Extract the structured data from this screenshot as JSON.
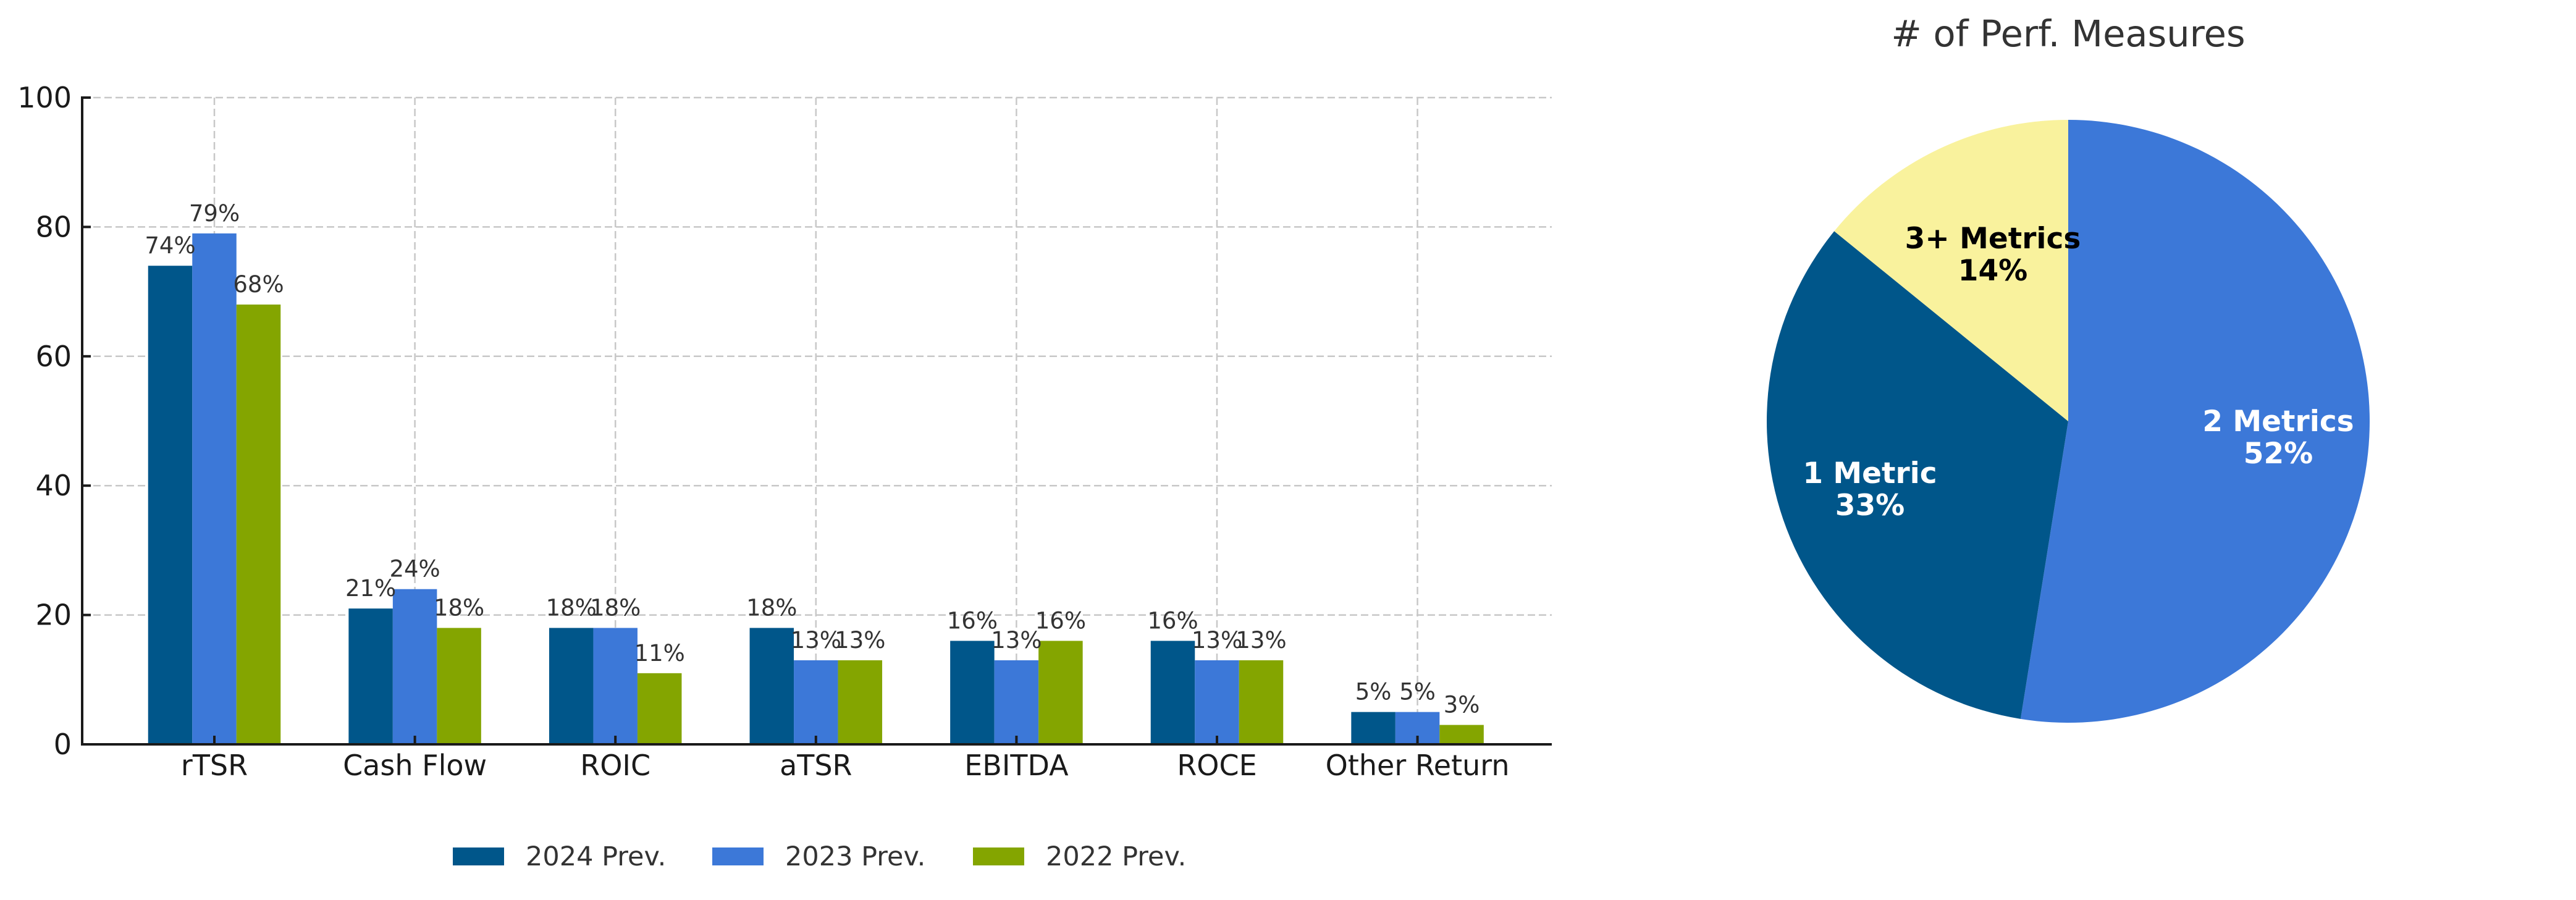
{
  "chart_data": [
    {
      "type": "bar",
      "title": "",
      "xlabel": "",
      "ylabel": "",
      "ylim": [
        0,
        100
      ],
      "yticks": [
        0,
        20,
        40,
        60,
        80,
        100
      ],
      "grid": true,
      "legend_position": "bottom-center",
      "categories": [
        "rTSR",
        "Cash Flow",
        "ROIC",
        "aTSR",
        "EBITDA",
        "ROCE",
        "Other Return"
      ],
      "series": [
        {
          "name": "2024 Prev.",
          "color": "#00568A",
          "values": [
            74,
            21,
            18,
            18,
            16,
            16,
            5
          ],
          "labels": [
            "74%",
            "21%",
            "18%",
            "18%",
            "16%",
            "16%",
            "5%"
          ]
        },
        {
          "name": "2023 Prev.",
          "color": "#3C78D8",
          "values": [
            79,
            24,
            18,
            13,
            13,
            13,
            5
          ],
          "labels": [
            "79%",
            "24%",
            "18%",
            "13%",
            "13%",
            "13%",
            "5%"
          ]
        },
        {
          "name": "2022 Prev.",
          "color": "#84A500",
          "values": [
            68,
            18,
            11,
            13,
            16,
            13,
            3
          ],
          "labels": [
            "68%",
            "18%",
            "11%",
            "13%",
            "16%",
            "13%",
            "3%"
          ]
        }
      ]
    },
    {
      "type": "pie",
      "title": "# of Perf. Measures",
      "slices": [
        {
          "label": "2 Metrics",
          "value": 52,
          "pct_label": "52%",
          "color": "#3C78D8",
          "text_color": "#ffffff"
        },
        {
          "label": "1 Metric",
          "value": 33,
          "pct_label": "33%",
          "color": "#00568A",
          "text_color": "#ffffff"
        },
        {
          "label": "3+ Metrics",
          "value": 14,
          "pct_label": "14%",
          "color": "#F9F29D",
          "text_color": "#000000"
        }
      ],
      "start_angle": 90,
      "direction": "clockwise"
    }
  ]
}
